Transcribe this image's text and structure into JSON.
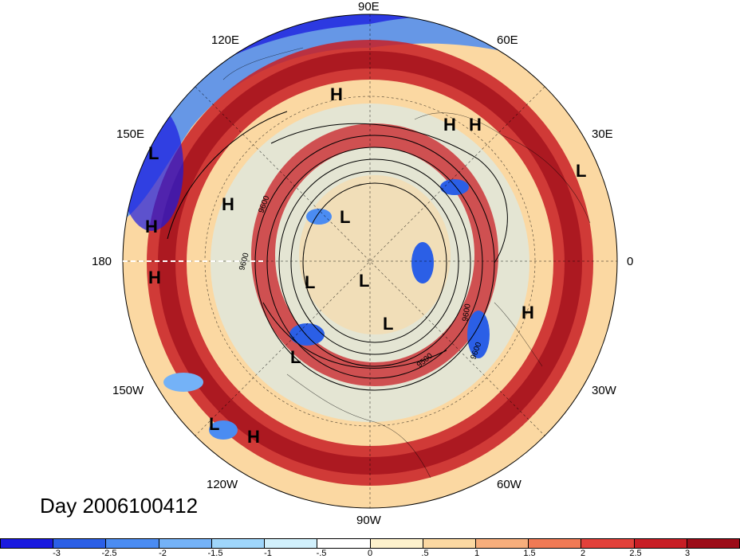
{
  "longitude_labels": {
    "e90": "90E",
    "e120": "120E",
    "e60": "60E",
    "e150": "150E",
    "e30": "30E",
    "d180": "180",
    "d0": "0",
    "w150": "150W",
    "w30": "30W",
    "w120": "120W",
    "w60": "60W",
    "w90": "90W"
  },
  "pressure_systems": [
    "H",
    "H",
    "L",
    "H",
    "H",
    "L",
    "H",
    "L",
    "H",
    "L",
    "L",
    "L",
    "H",
    "L",
    "L",
    "H"
  ],
  "contour_labels": [
    "9600",
    "9600",
    "9600",
    "9600",
    "9500"
  ],
  "day_label": "Day 2006100412",
  "colorbar": {
    "colors": [
      "#1a1adf",
      "#2b5fe6",
      "#4b8cf2",
      "#74b2f7",
      "#9fd6fb",
      "#d1f0fc",
      "#ffffff",
      "#fdf1cc",
      "#fbd8a2",
      "#f7ae7c",
      "#f07a55",
      "#e2413a",
      "#c81e25",
      "#9c0c18"
    ],
    "tick_labels": [
      "-3",
      "-2.5",
      "-2",
      "-1.5",
      "-1",
      "-.5",
      "0",
      ".5",
      "1",
      "1.5",
      "2",
      "2.5",
      "3"
    ]
  }
}
